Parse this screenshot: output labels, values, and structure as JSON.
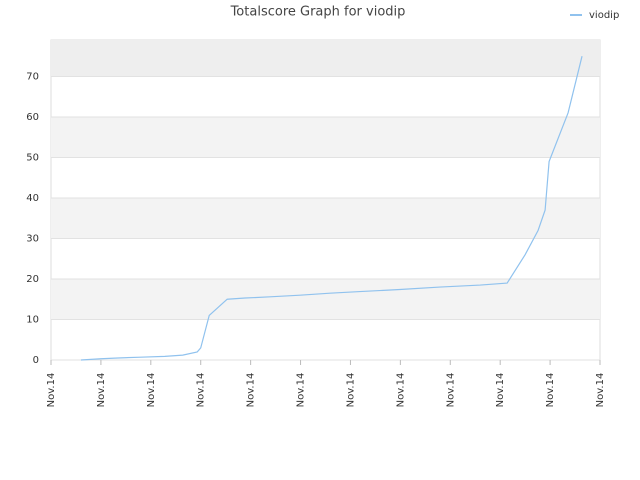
{
  "chart_data": {
    "type": "line",
    "title": "Totalscore Graph for viodip",
    "x": [
      0.6,
      1.0,
      1.34,
      1.8,
      2.28,
      2.64,
      2.93,
      3.0,
      3.17,
      3.53,
      3.89,
      4.39,
      4.99,
      5.59,
      6.19,
      6.99,
      7.79,
      8.6,
      9.14,
      9.5,
      9.76,
      9.9,
      9.98,
      10.36,
      10.64
    ],
    "series": [
      {
        "name": "viodip",
        "color": "#90c2ee",
        "values": [
          0,
          0.3,
          0.5,
          0.7,
          0.9,
          1.2,
          2,
          3,
          11,
          15,
          15.3,
          15.6,
          16,
          16.5,
          16.9,
          17.4,
          18,
          18.5,
          19,
          26,
          32,
          37,
          49,
          61,
          75
        ]
      }
    ],
    "xlim": [
      0,
      11
    ],
    "xticks": [
      {
        "value": 0,
        "label": "Nov.14"
      },
      {
        "value": 1,
        "label": "Nov.14"
      },
      {
        "value": 2,
        "label": "Nov.14"
      },
      {
        "value": 3,
        "label": "Nov.14"
      },
      {
        "value": 4,
        "label": "Nov.14"
      },
      {
        "value": 5,
        "label": "Nov.14"
      },
      {
        "value": 6,
        "label": "Nov.14"
      },
      {
        "value": 7,
        "label": "Nov.14"
      },
      {
        "value": 8,
        "label": "Nov.14"
      },
      {
        "value": 9,
        "label": "Nov.14"
      },
      {
        "value": 10,
        "label": "Nov.14"
      },
      {
        "value": 11,
        "label": "Nov.14"
      }
    ],
    "ylim": [
      0,
      79
    ],
    "yticks": [
      0,
      10,
      20,
      30,
      40,
      50,
      60,
      70
    ],
    "grid": true,
    "legend": "top-right"
  }
}
